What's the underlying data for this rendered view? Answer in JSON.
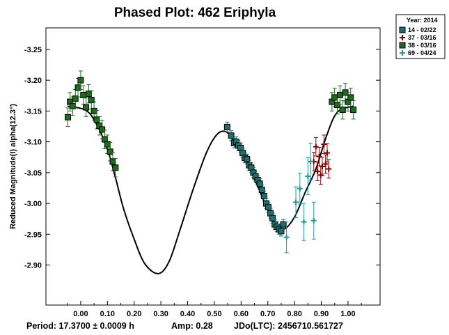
{
  "chart_data": {
    "type": "scatter",
    "title": "Phased Plot: 462 Eriphyla",
    "ylabel": "Reduced Magnitude(I) alpha(12.3°)",
    "xlabel": "",
    "xlim": [
      -0.13,
      1.12
    ],
    "ylim": [
      -2.835,
      -3.285
    ],
    "y_inverted": true,
    "x_ticks": [
      0.0,
      0.1,
      0.2,
      0.3,
      0.4,
      0.5,
      0.6,
      0.7,
      0.8,
      0.9,
      1.0
    ],
    "x_tick_labels": [
      "0.00",
      "0.10",
      "0.20",
      "0.30",
      "0.40",
      "0.50",
      "0.60",
      "0.70",
      "0.80",
      "0.90",
      "1.00"
    ],
    "y_ticks": [
      -3.25,
      -3.2,
      -3.15,
      -3.1,
      -3.05,
      -3.0,
      -2.95,
      -2.9
    ],
    "y_tick_labels": [
      "-3.25",
      "-3.20",
      "-3.15",
      "-3.10",
      "-3.05",
      "-3.00",
      "-2.95",
      "-2.90"
    ],
    "grid": false,
    "legend": {
      "position": "outside-top-right",
      "title": "Year: 2014",
      "entries": [
        {
          "label": "14 - 02/22",
          "color": "#1f6f70",
          "marker": "square"
        },
        {
          "label": "37 - 03/16",
          "color": "#8b0000",
          "marker": "plus"
        },
        {
          "label": "38 - 03/16",
          "color": "#1e6b1e",
          "marker": "square"
        },
        {
          "label": "69 - 04/24",
          "color": "#1f9a9a",
          "marker": "plus"
        }
      ]
    },
    "fit_curve": [
      {
        "x": -0.05,
        "y": -3.158
      },
      {
        "x": 0.02,
        "y": -3.151
      },
      {
        "x": 0.06,
        "y": -3.128
      },
      {
        "x": 0.1,
        "y": -3.088
      },
      {
        "x": 0.13,
        "y": -3.042
      },
      {
        "x": 0.16,
        "y": -2.992
      },
      {
        "x": 0.2,
        "y": -2.942
      },
      {
        "x": 0.24,
        "y": -2.902
      },
      {
        "x": 0.29,
        "y": -2.886
      },
      {
        "x": 0.33,
        "y": -2.905
      },
      {
        "x": 0.37,
        "y": -2.955
      },
      {
        "x": 0.42,
        "y": -3.022
      },
      {
        "x": 0.47,
        "y": -3.082
      },
      {
        "x": 0.51,
        "y": -3.112
      },
      {
        "x": 0.545,
        "y": -3.116
      },
      {
        "x": 0.58,
        "y": -3.096
      },
      {
        "x": 0.62,
        "y": -3.066
      },
      {
        "x": 0.66,
        "y": -3.03
      },
      {
        "x": 0.7,
        "y": -2.99
      },
      {
        "x": 0.73,
        "y": -2.968
      },
      {
        "x": 0.76,
        "y": -2.958
      },
      {
        "x": 0.8,
        "y": -2.978
      },
      {
        "x": 0.84,
        "y": -3.018
      },
      {
        "x": 0.88,
        "y": -3.056
      },
      {
        "x": 0.92,
        "y": -3.11
      },
      {
        "x": 0.96,
        "y": -3.148
      },
      {
        "x": 1.02,
        "y": -3.158
      }
    ],
    "series": [
      {
        "name": "14 - 02/22",
        "color": "#1f6f70",
        "marker": "square",
        "points": [
          {
            "x": 0.548,
            "y": -3.124,
            "err": 0.008
          },
          {
            "x": 0.563,
            "y": -3.11,
            "err": 0.008
          },
          {
            "x": 0.574,
            "y": -3.098,
            "err": 0.008
          },
          {
            "x": 0.582,
            "y": -3.1,
            "err": 0.008
          },
          {
            "x": 0.59,
            "y": -3.094,
            "err": 0.008
          },
          {
            "x": 0.598,
            "y": -3.09,
            "err": 0.008
          },
          {
            "x": 0.606,
            "y": -3.082,
            "err": 0.008
          },
          {
            "x": 0.614,
            "y": -3.074,
            "err": 0.008
          },
          {
            "x": 0.622,
            "y": -3.072,
            "err": 0.008
          },
          {
            "x": 0.63,
            "y": -3.062,
            "err": 0.008
          },
          {
            "x": 0.638,
            "y": -3.058,
            "err": 0.008
          },
          {
            "x": 0.646,
            "y": -3.05,
            "err": 0.008
          },
          {
            "x": 0.654,
            "y": -3.044,
            "err": 0.008
          },
          {
            "x": 0.662,
            "y": -3.038,
            "err": 0.008
          },
          {
            "x": 0.67,
            "y": -3.032,
            "err": 0.008
          },
          {
            "x": 0.678,
            "y": -3.022,
            "err": 0.008
          },
          {
            "x": 0.686,
            "y": -3.012,
            "err": 0.008
          },
          {
            "x": 0.694,
            "y": -3.0,
            "err": 0.008
          },
          {
            "x": 0.702,
            "y": -2.994,
            "err": 0.008
          },
          {
            "x": 0.71,
            "y": -2.984,
            "err": 0.008
          },
          {
            "x": 0.718,
            "y": -2.976,
            "err": 0.008
          },
          {
            "x": 0.726,
            "y": -2.966,
            "err": 0.008
          },
          {
            "x": 0.734,
            "y": -2.962,
            "err": 0.008
          },
          {
            "x": 0.742,
            "y": -2.958,
            "err": 0.008
          },
          {
            "x": 0.75,
            "y": -2.955,
            "err": 0.008
          },
          {
            "x": 0.758,
            "y": -2.966,
            "err": 0.008
          }
        ]
      },
      {
        "name": "37 - 03/16",
        "color": "#8b0000",
        "marker": "plus",
        "points": [
          {
            "x": 0.872,
            "y": -3.068,
            "err": 0.015
          },
          {
            "x": 0.88,
            "y": -3.092,
            "err": 0.015
          },
          {
            "x": 0.886,
            "y": -3.052,
            "err": 0.015
          },
          {
            "x": 0.892,
            "y": -3.076,
            "err": 0.015
          },
          {
            "x": 0.898,
            "y": -3.046,
            "err": 0.015
          },
          {
            "x": 0.904,
            "y": -3.06,
            "err": 0.015
          },
          {
            "x": 0.91,
            "y": -3.096,
            "err": 0.015
          },
          {
            "x": 0.916,
            "y": -3.064,
            "err": 0.015
          },
          {
            "x": 0.922,
            "y": -3.082,
            "err": 0.015
          },
          {
            "x": 0.928,
            "y": -3.056,
            "err": 0.015
          }
        ]
      },
      {
        "name": "38 - 03/16",
        "color": "#1e6b1e",
        "marker": "square",
        "points": [
          {
            "x": -0.048,
            "y": -3.14,
            "err": 0.015
          },
          {
            "x": -0.04,
            "y": -3.165,
            "err": 0.015
          },
          {
            "x": -0.03,
            "y": -3.158,
            "err": 0.015
          },
          {
            "x": -0.02,
            "y": -3.17,
            "err": 0.015
          },
          {
            "x": -0.01,
            "y": -3.188,
            "err": 0.015
          },
          {
            "x": 0.0,
            "y": -3.2,
            "err": 0.015
          },
          {
            "x": 0.01,
            "y": -3.176,
            "err": 0.015
          },
          {
            "x": 0.02,
            "y": -3.156,
            "err": 0.015
          },
          {
            "x": 0.03,
            "y": -3.178,
            "err": 0.015
          },
          {
            "x": 0.04,
            "y": -3.168,
            "err": 0.015
          },
          {
            "x": 0.05,
            "y": -3.15,
            "err": 0.015
          },
          {
            "x": 0.06,
            "y": -3.136,
            "err": 0.015
          },
          {
            "x": 0.07,
            "y": -3.126,
            "err": 0.015
          },
          {
            "x": 0.08,
            "y": -3.12,
            "err": 0.015
          },
          {
            "x": 0.09,
            "y": -3.104,
            "err": 0.015
          },
          {
            "x": 0.1,
            "y": -3.096,
            "err": 0.015
          },
          {
            "x": 0.11,
            "y": -3.084,
            "err": 0.015
          },
          {
            "x": 0.12,
            "y": -3.068,
            "err": 0.015
          },
          {
            "x": 0.13,
            "y": -3.058,
            "err": 0.015
          },
          {
            "x": 0.94,
            "y": -3.165,
            "err": 0.015
          },
          {
            "x": 0.95,
            "y": -3.172,
            "err": 0.015
          },
          {
            "x": 0.96,
            "y": -3.16,
            "err": 0.015
          },
          {
            "x": 0.97,
            "y": -3.176,
            "err": 0.015
          },
          {
            "x": 0.98,
            "y": -3.152,
            "err": 0.015
          },
          {
            "x": 0.99,
            "y": -3.18,
            "err": 0.015
          },
          {
            "x": 1.0,
            "y": -3.165,
            "err": 0.015
          },
          {
            "x": 1.01,
            "y": -3.172,
            "err": 0.015
          },
          {
            "x": 1.02,
            "y": -3.152,
            "err": 0.015
          }
        ]
      },
      {
        "name": "69 - 04/24",
        "color": "#1f9a9a",
        "marker": "plus",
        "points": [
          {
            "x": 0.77,
            "y": -2.945,
            "err": 0.025
          },
          {
            "x": 0.805,
            "y": -3.002,
            "err": 0.025
          },
          {
            "x": 0.82,
            "y": -3.024,
            "err": 0.025
          },
          {
            "x": 0.835,
            "y": -2.97,
            "err": 0.03
          },
          {
            "x": 0.85,
            "y": -3.044,
            "err": 0.03
          },
          {
            "x": 0.86,
            "y": -3.068,
            "err": 0.03
          },
          {
            "x": 0.872,
            "y": -2.972,
            "err": 0.03
          }
        ]
      }
    ]
  },
  "footer": {
    "period": "Period: 17.3700 ± 0.0009 h",
    "amp": "Amp: 0.28",
    "jdo": "JDo(LTC): 2456710.561727"
  }
}
